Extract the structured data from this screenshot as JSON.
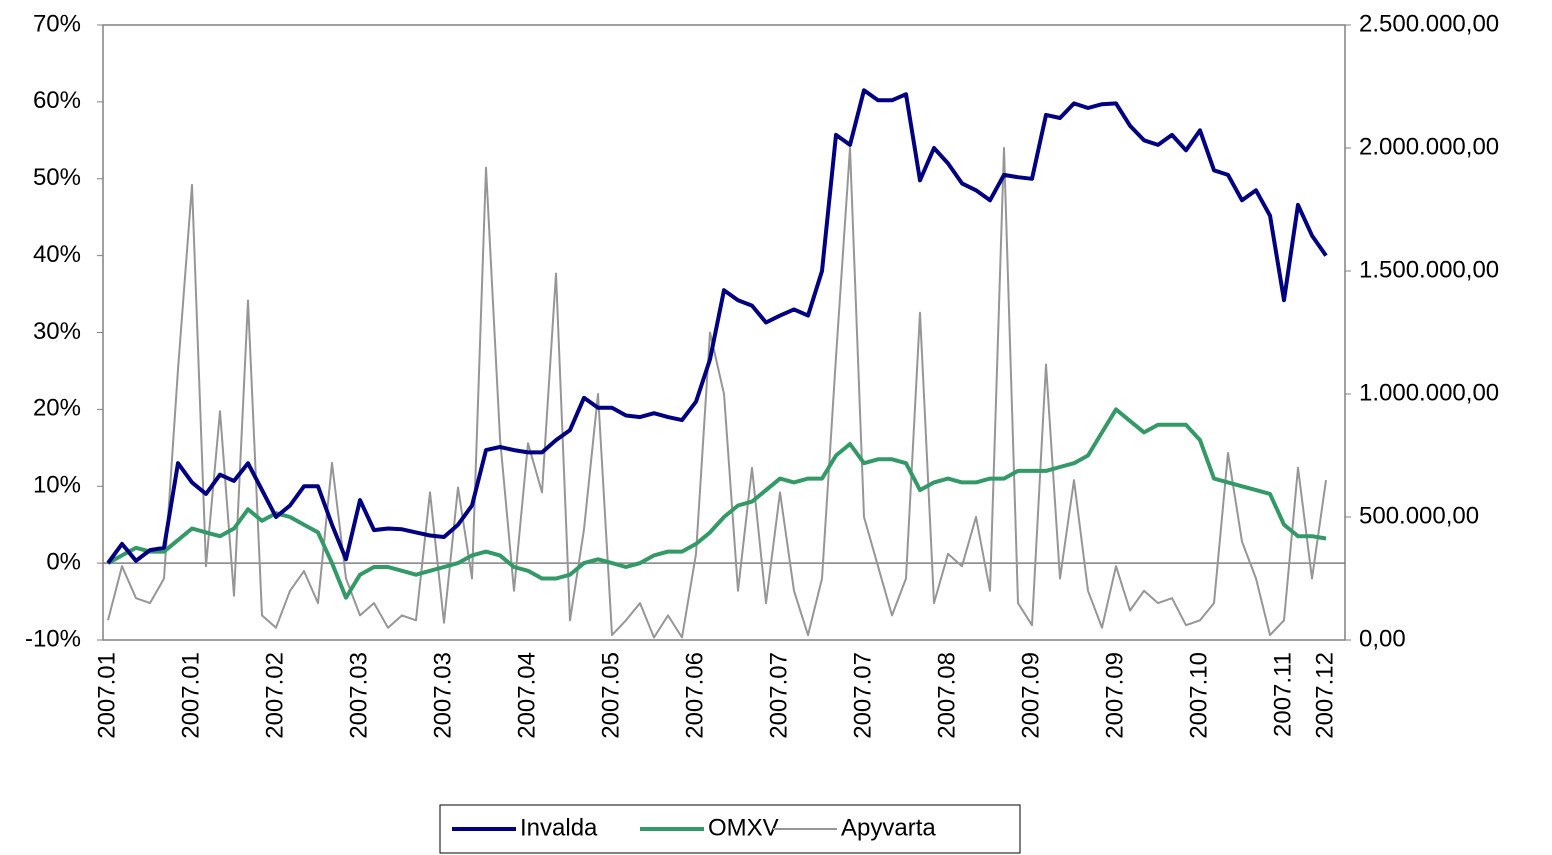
{
  "chart_data": {
    "type": "line",
    "categories": [
      "2007.01",
      null,
      null,
      null,
      null,
      null,
      "2007.01",
      null,
      null,
      null,
      null,
      null,
      "2007.02",
      null,
      null,
      null,
      null,
      null,
      "2007.03",
      null,
      null,
      null,
      null,
      null,
      "2007.03",
      null,
      null,
      null,
      null,
      null,
      "2007.04",
      null,
      null,
      null,
      null,
      null,
      "2007.05",
      null,
      null,
      null,
      null,
      null,
      "2007.06",
      null,
      null,
      null,
      null,
      null,
      "2007.07",
      null,
      null,
      null,
      null,
      null,
      "2007.07",
      null,
      null,
      null,
      null,
      null,
      "2007.08",
      null,
      null,
      null,
      null,
      null,
      "2007.09",
      null,
      null,
      null,
      null,
      null,
      "2007.09",
      null,
      null,
      null,
      null,
      null,
      "2007.10",
      null,
      null,
      null,
      null,
      null,
      "2007.11",
      null,
      null,
      "2007.12"
    ],
    "series": [
      {
        "name": "Invalda",
        "color": "#000080",
        "values": [
          0,
          2.5,
          0.3,
          1.7,
          2,
          13,
          10.5,
          9,
          11.5,
          10.7,
          13,
          9.5,
          6,
          7.5,
          10,
          10,
          5,
          0.5,
          8.2,
          4.3,
          4.5,
          4.4,
          4,
          3.6,
          3.4,
          5,
          7.5,
          14.7,
          15.1,
          14.7,
          14.4,
          14.4,
          16,
          17.3,
          21.5,
          20.2,
          20.2,
          19.2,
          19,
          19.5,
          19,
          18.6,
          21,
          26.5,
          35.5,
          34.2,
          33.5,
          31.3,
          32.2,
          33,
          32.2,
          38,
          55.7,
          54.4,
          61.5,
          60.2,
          60.2,
          61,
          49.8,
          54,
          52,
          49.4,
          48.5,
          47.2,
          50.5,
          50.2,
          50,
          58.3,
          57.9,
          59.8,
          59.2,
          59.7,
          59.8,
          56.9,
          55,
          54.4,
          55.7,
          53.7,
          56.3,
          51.1,
          50.5,
          47.2,
          48.5,
          45.2,
          34.2,
          46.6,
          42.6,
          40
        ]
      },
      {
        "name": "OMXV",
        "color": "#339966",
        "values": [
          0,
          1,
          2,
          1.5,
          1.5,
          3,
          4.5,
          4,
          3.5,
          4.5,
          7,
          5.5,
          6.5,
          6,
          5,
          4,
          0,
          -4.5,
          -1.5,
          -0.5,
          -0.5,
          -1,
          -1.5,
          -1,
          -0.5,
          0,
          1,
          1.5,
          1,
          -0.5,
          -1,
          -2,
          -2,
          -1.5,
          0,
          0.5,
          0,
          -0.5,
          0,
          1,
          1.5,
          1.5,
          2.5,
          4,
          6,
          7.5,
          8,
          9.5,
          11,
          10.5,
          11,
          11,
          14,
          15.5,
          13,
          13.5,
          13.5,
          13,
          9.5,
          10.5,
          11,
          10.5,
          10.5,
          11,
          11,
          12,
          12,
          12,
          12.5,
          13,
          14,
          17,
          20,
          18.5,
          17,
          18,
          18,
          18,
          16,
          11,
          10.5,
          10,
          9.5,
          9,
          5,
          3.5,
          3.5,
          3.2
        ]
      },
      {
        "name": "Apyvarta",
        "color": "#969696",
        "axis": "y2",
        "values": [
          80000,
          300000,
          170000,
          150000,
          250000,
          1100000,
          1850000,
          300000,
          930000,
          180000,
          1380000,
          100000,
          50000,
          200000,
          280000,
          150000,
          720000,
          250000,
          100000,
          150000,
          50000,
          100000,
          80000,
          600000,
          70000,
          620000,
          250000,
          1920000,
          820000,
          200000,
          800000,
          600000,
          1490000,
          80000,
          450000,
          1000000,
          20000,
          80000,
          150000,
          10000,
          100000,
          10000,
          350000,
          1250000,
          1000000,
          200000,
          700000,
          150000,
          600000,
          200000,
          20000,
          250000,
          1150000,
          2000000,
          500000,
          300000,
          100000,
          250000,
          1330000,
          150000,
          350000,
          300000,
          500000,
          200000,
          2000000,
          150000,
          60000,
          1120000,
          250000,
          650000,
          200000,
          50000,
          300000,
          120000,
          200000,
          150000,
          170000,
          60000,
          80000,
          150000,
          760000,
          400000,
          250000,
          20000,
          80000,
          700000,
          250000,
          650000
        ]
      }
    ],
    "ylim": [
      -10,
      70
    ],
    "yticks": [
      {
        "value": -10,
        "label": "-10%"
      },
      {
        "value": 0,
        "label": "0%"
      },
      {
        "value": 10,
        "label": "10%"
      },
      {
        "value": 20,
        "label": "20%"
      },
      {
        "value": 30,
        "label": "30%"
      },
      {
        "value": 40,
        "label": "40%"
      },
      {
        "value": 50,
        "label": "50%"
      },
      {
        "value": 60,
        "label": "60%"
      },
      {
        "value": 70,
        "label": "70%"
      }
    ],
    "y2lim": [
      0,
      2500000
    ],
    "y2ticks": [
      {
        "value": 0,
        "label": "0,00"
      },
      {
        "value": 500000,
        "label": "500.000,00"
      },
      {
        "value": 1000000,
        "label": "1.000.000,00"
      },
      {
        "value": 1500000,
        "label": "1.500.000,00"
      },
      {
        "value": 2000000,
        "label": "2.000.000,00"
      },
      {
        "value": 2500000,
        "label": "2.500.000,00"
      }
    ],
    "legend": "bottom"
  }
}
